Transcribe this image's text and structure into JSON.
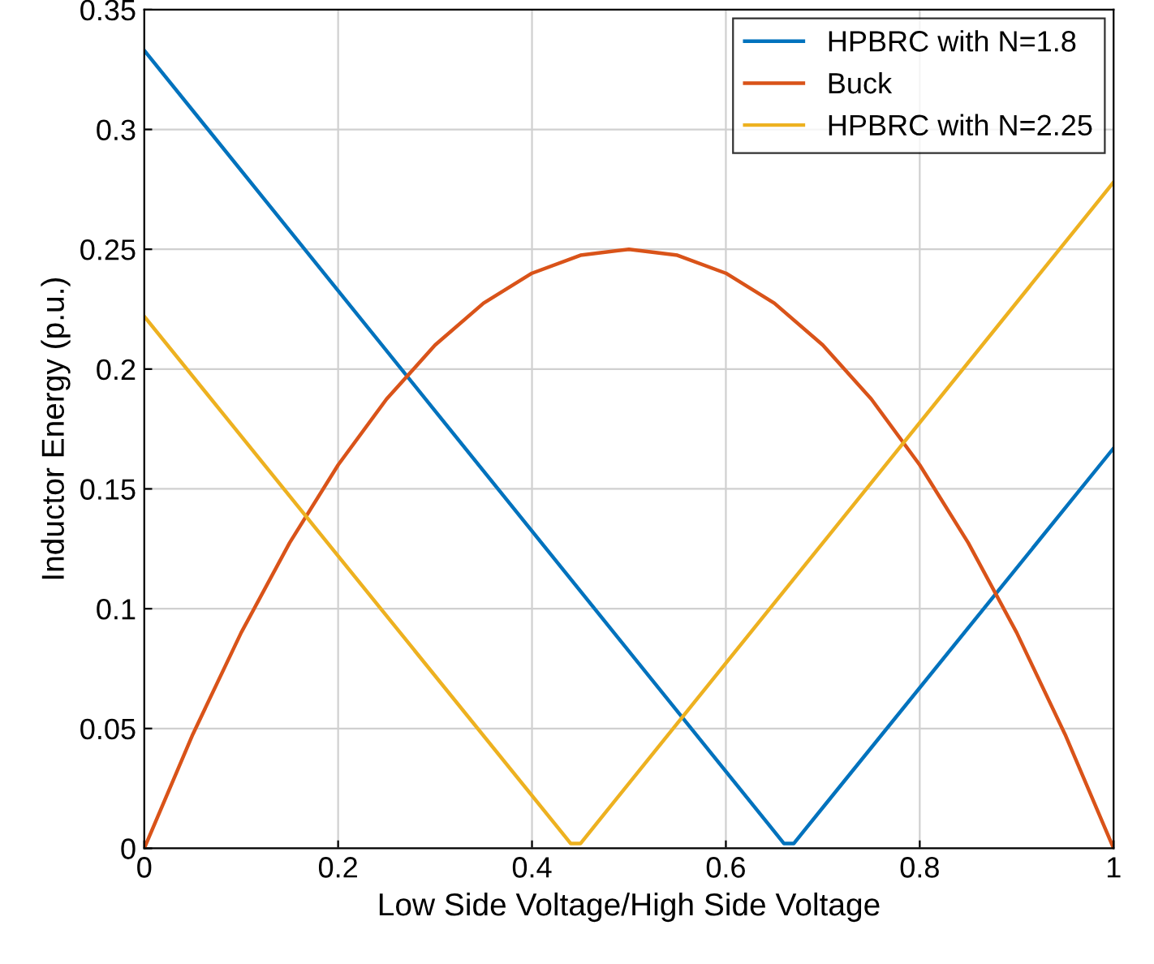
{
  "chart_data": {
    "type": "line",
    "xlabel": "Low Side Voltage/High Side Voltage",
    "ylabel": "Inductor Energy (p.u.)",
    "series": [
      {
        "name": "HPBRC with N=1.8",
        "color": "#0072bd",
        "x": [
          0,
          0.66,
          0.67,
          1
        ],
        "values": [
          0.333,
          0.002,
          0.002,
          0.167
        ]
      },
      {
        "name": "Buck",
        "color": "#d95319",
        "x": [
          0,
          0.05,
          0.1,
          0.15,
          0.2,
          0.25,
          0.3,
          0.35,
          0.4,
          0.45,
          0.5,
          0.55,
          0.6,
          0.65,
          0.7,
          0.75,
          0.8,
          0.85,
          0.9,
          0.95,
          1
        ],
        "values": [
          0,
          0.0475,
          0.09,
          0.1275,
          0.16,
          0.1875,
          0.21,
          0.2275,
          0.24,
          0.2475,
          0.25,
          0.2475,
          0.24,
          0.2275,
          0.21,
          0.1875,
          0.16,
          0.1275,
          0.09,
          0.0475,
          0
        ]
      },
      {
        "name": "HPBRC with N=2.25",
        "color": "#edb120",
        "x": [
          0,
          0.44,
          0.45,
          1
        ],
        "values": [
          0.222,
          0.002,
          0.002,
          0.278
        ]
      }
    ],
    "xlim": [
      0,
      1
    ],
    "xticks": [
      0,
      0.2,
      0.4,
      0.6,
      0.8,
      1
    ],
    "ylim": [
      0,
      0.35
    ],
    "yticks": [
      0,
      0.05,
      0.1,
      0.15,
      0.2,
      0.25,
      0.3,
      0.35
    ],
    "grid": true,
    "legend": "top right",
    "line_style": "solid",
    "marker": "none"
  }
}
